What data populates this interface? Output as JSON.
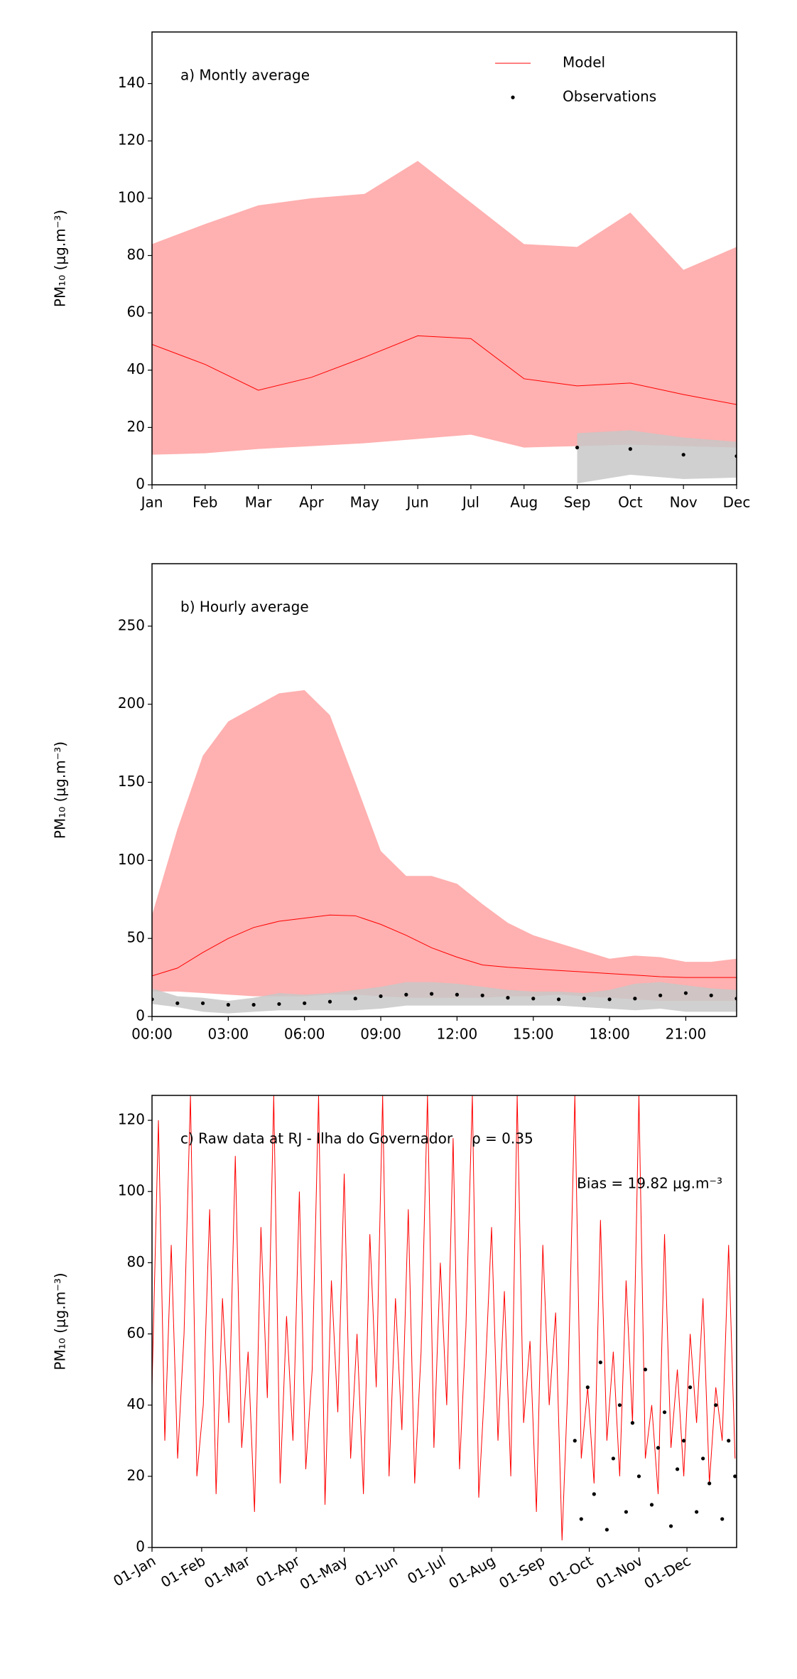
{
  "chart_data": [
    {
      "type": "line",
      "title": "a) Montly average",
      "ylabel": "PM₁₀ (μg.m⁻³)",
      "legend": "upper right",
      "categories": [
        "Jan",
        "Feb",
        "Mar",
        "Apr",
        "May",
        "Jun",
        "Jul",
        "Aug",
        "Sep",
        "Oct",
        "Nov",
        "Dec"
      ],
      "ylim": [
        0,
        158
      ],
      "yticks": [
        0,
        20,
        40,
        60,
        80,
        100,
        120,
        140
      ],
      "series": [
        {
          "name": "Model",
          "color": "#ff0000",
          "style": "line",
          "band_color": "#ffb0b0",
          "values": [
            49,
            42,
            33,
            37.5,
            44.5,
            52,
            51,
            37,
            34.5,
            35.5,
            31.5,
            28
          ],
          "upper": [
            84,
            91,
            97.5,
            100,
            101.5,
            113,
            98.5,
            84,
            83,
            95,
            75,
            83
          ],
          "lower": [
            10.5,
            11,
            12.5,
            13.5,
            14.5,
            16,
            17.5,
            13,
            13.5,
            14,
            13.5,
            13
          ]
        },
        {
          "name": "Observations",
          "color": "#000000",
          "style": "dots",
          "band_color": "#c8c8c8",
          "values": [
            null,
            null,
            null,
            null,
            null,
            null,
            null,
            null,
            13,
            12.5,
            10.5,
            10
          ],
          "upper": [
            null,
            null,
            null,
            null,
            null,
            null,
            null,
            null,
            18,
            19,
            16.5,
            15
          ],
          "lower": [
            null,
            null,
            null,
            null,
            null,
            null,
            null,
            null,
            0.5,
            3.5,
            2,
            2.5
          ]
        }
      ]
    },
    {
      "type": "line",
      "title": "b) Hourly average",
      "ylabel": "PM₁₀ (μg.m⁻³)",
      "x": [
        0,
        1,
        2,
        3,
        4,
        5,
        6,
        7,
        8,
        9,
        10,
        11,
        12,
        13,
        14,
        15,
        16,
        17,
        18,
        19,
        20,
        21,
        22,
        23
      ],
      "xlim": [
        0,
        23
      ],
      "xticks": [
        {
          "value": 0,
          "label": "00:00"
        },
        {
          "value": 3,
          "label": "03:00"
        },
        {
          "value": 6,
          "label": "06:00"
        },
        {
          "value": 9,
          "label": "09:00"
        },
        {
          "value": 12,
          "label": "12:00"
        },
        {
          "value": 15,
          "label": "15:00"
        },
        {
          "value": 18,
          "label": "18:00"
        },
        {
          "value": 21,
          "label": "21:00"
        }
      ],
      "ylim": [
        0,
        290
      ],
      "yticks": [
        0,
        50,
        100,
        150,
        200,
        250
      ],
      "series": [
        {
          "name": "Model",
          "color": "#ff0000",
          "style": "line",
          "band_color": "#ffb0b0",
          "values": [
            26,
            31,
            41,
            50,
            57,
            61,
            63,
            65,
            64.5,
            59,
            52,
            44,
            38,
            33,
            31.5,
            30.5,
            29.5,
            28.5,
            27.5,
            26.5,
            25.5,
            25,
            25,
            25
          ],
          "upper": [
            65,
            120,
            167,
            189,
            198,
            207,
            209,
            193,
            150,
            106,
            90,
            90,
            85,
            72,
            60,
            52,
            47,
            42,
            37,
            39,
            38,
            35,
            35,
            37
          ],
          "lower": [
            16,
            16,
            15,
            14,
            13,
            13,
            13,
            14,
            14,
            13,
            12,
            12,
            12,
            12,
            13,
            13,
            14,
            13,
            12,
            11,
            10,
            10,
            10,
            10
          ]
        },
        {
          "name": "Observations",
          "color": "#000000",
          "style": "dots",
          "band_color": "#c8c8c8",
          "values": [
            11,
            8.5,
            8.5,
            7.5,
            7.5,
            8,
            8.5,
            9.5,
            11.5,
            13,
            14,
            14.5,
            14,
            13.5,
            12,
            11.5,
            11,
            11.5,
            11,
            11.5,
            13.5,
            15,
            13.5,
            11.5
          ],
          "upper": [
            18,
            13,
            12,
            10,
            12,
            15,
            14,
            15,
            17,
            19,
            22,
            22,
            21,
            19,
            17,
            16,
            16,
            15,
            17,
            21,
            22,
            20,
            18,
            17
          ],
          "lower": [
            8,
            6,
            3,
            2,
            3,
            4,
            4,
            4,
            4,
            5,
            7,
            7,
            7,
            7,
            7,
            7,
            7,
            6,
            5,
            4,
            5,
            3,
            3,
            3
          ]
        }
      ]
    },
    {
      "type": "line",
      "title": "c) Raw data at RJ - Ilha do Governador",
      "ylabel": "PM₁₀ (μg.m⁻³)",
      "annotations": [
        "ρ = 0.35",
        "Bias = 19.82 μg.m⁻³"
      ],
      "xlim": [
        0,
        365
      ],
      "xticks": [
        {
          "value": 0,
          "label": "01-Jan"
        },
        {
          "value": 31,
          "label": "01-Feb"
        },
        {
          "value": 59,
          "label": "01-Mar"
        },
        {
          "value": 90,
          "label": "01-Apr"
        },
        {
          "value": 120,
          "label": "01-May"
        },
        {
          "value": 151,
          "label": "01-Jun"
        },
        {
          "value": 181,
          "label": "01-Jul"
        },
        {
          "value": 212,
          "label": "01-Aug"
        },
        {
          "value": 243,
          "label": "01-Sep"
        },
        {
          "value": 273,
          "label": "01-Oct"
        },
        {
          "value": 304,
          "label": "01-Nov"
        },
        {
          "value": 334,
          "label": "01-Dec"
        }
      ],
      "ylim": [
        0,
        127
      ],
      "yticks": [
        0,
        20,
        40,
        60,
        80,
        100,
        120
      ],
      "series": [
        {
          "name": "Model",
          "color": "#ff0000",
          "style": "line",
          "x": [
            0,
            4,
            8,
            12,
            16,
            20,
            24,
            28,
            32,
            36,
            40,
            44,
            48,
            52,
            56,
            60,
            64,
            68,
            72,
            76,
            80,
            84,
            88,
            92,
            96,
            100,
            104,
            108,
            112,
            116,
            120,
            124,
            128,
            132,
            136,
            140,
            144,
            148,
            152,
            156,
            160,
            164,
            168,
            172,
            176,
            180,
            184,
            188,
            192,
            196,
            200,
            204,
            208,
            212,
            216,
            220,
            224,
            228,
            232,
            236,
            240,
            244,
            248,
            252,
            256,
            260,
            264,
            268,
            272,
            276,
            280,
            284,
            288,
            292,
            296,
            300,
            304,
            308,
            312,
            316,
            320,
            324,
            328,
            332,
            336,
            340,
            344,
            348,
            352,
            356,
            360,
            364
          ],
          "values": [
            45,
            120,
            30,
            85,
            25,
            60,
            127,
            20,
            40,
            95,
            15,
            70,
            35,
            110,
            28,
            55,
            10,
            90,
            42,
            127,
            18,
            65,
            30,
            100,
            22,
            50,
            127,
            12,
            75,
            38,
            105,
            25,
            60,
            15,
            88,
            45,
            127,
            20,
            70,
            33,
            95,
            18,
            55,
            127,
            28,
            80,
            40,
            115,
            22,
            62,
            127,
            14,
            48,
            90,
            30,
            72,
            20,
            127,
            35,
            58,
            10,
            85,
            40,
            66,
            2,
            50,
            127,
            25,
            45,
            18,
            92,
            30,
            55,
            20,
            75,
            35,
            127,
            25,
            40,
            15,
            88,
            28,
            50,
            20,
            60,
            35,
            70,
            18,
            45,
            30,
            85,
            25
          ]
        },
        {
          "name": "Observations",
          "color": "#000000",
          "style": "dots",
          "x": [
            264,
            268,
            272,
            276,
            280,
            284,
            288,
            292,
            296,
            300,
            304,
            308,
            312,
            316,
            320,
            324,
            328,
            332,
            336,
            340,
            344,
            348,
            352,
            356,
            360,
            364
          ],
          "values": [
            30,
            8,
            45,
            15,
            52,
            5,
            25,
            40,
            10,
            35,
            20,
            50,
            12,
            28,
            38,
            6,
            22,
            30,
            45,
            10,
            25,
            18,
            40,
            8,
            30,
            20
          ]
        }
      ]
    }
  ]
}
